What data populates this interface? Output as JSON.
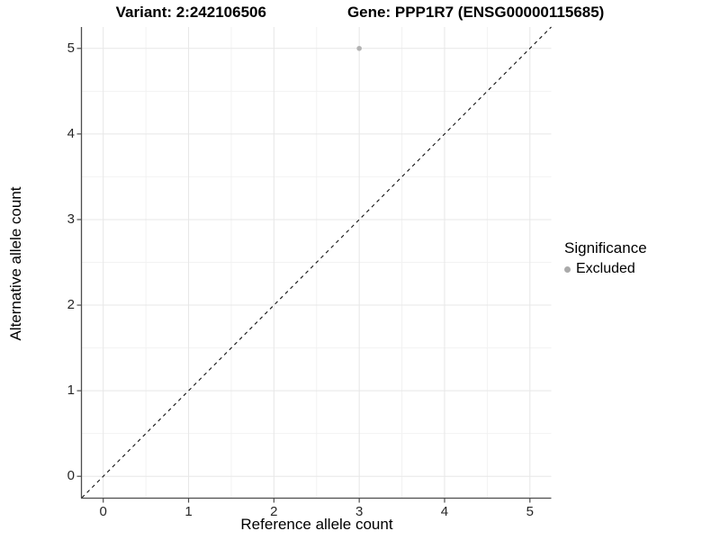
{
  "title": {
    "variant": "Variant: 2:242106506",
    "gene": "Gene: PPP1R7 (ENSG00000115685)"
  },
  "chart_data": {
    "type": "scatter",
    "title": "Variant: 2:242106506   Gene: PPP1R7 (ENSG00000115685)",
    "xlabel": "Reference allele count",
    "ylabel": "Alternative allele count",
    "xlim": [
      -0.25,
      5.25
    ],
    "ylim": [
      -0.25,
      5.25
    ],
    "x_ticks": [
      0,
      1,
      2,
      3,
      4,
      5
    ],
    "y_ticks": [
      0,
      1,
      2,
      3,
      4,
      5
    ],
    "x_minor_ticks": [
      0.5,
      1.5,
      2.5,
      3.5,
      4.5
    ],
    "y_minor_ticks": [
      0.5,
      1.5,
      2.5,
      3.5,
      4.5
    ],
    "grid": "major+minor",
    "series": [
      {
        "name": "Excluded",
        "color": "#b2b2b2",
        "points": [
          {
            "x": 3,
            "y": 5
          }
        ]
      }
    ],
    "reference_line": {
      "type": "abline",
      "slope": 1,
      "intercept": 0,
      "style": "dashed",
      "color": "#111111"
    },
    "legend": {
      "position": "right",
      "title": "Significance",
      "items": [
        {
          "label": "Excluded",
          "color": "#aaaaaa"
        }
      ]
    }
  },
  "colors": {
    "grid_major": "#e7e7e7",
    "grid_minor": "#f2f2f2",
    "axis_line": "#4d4d4d",
    "tick_text": "#262626",
    "point": "#b2b2b2"
  }
}
